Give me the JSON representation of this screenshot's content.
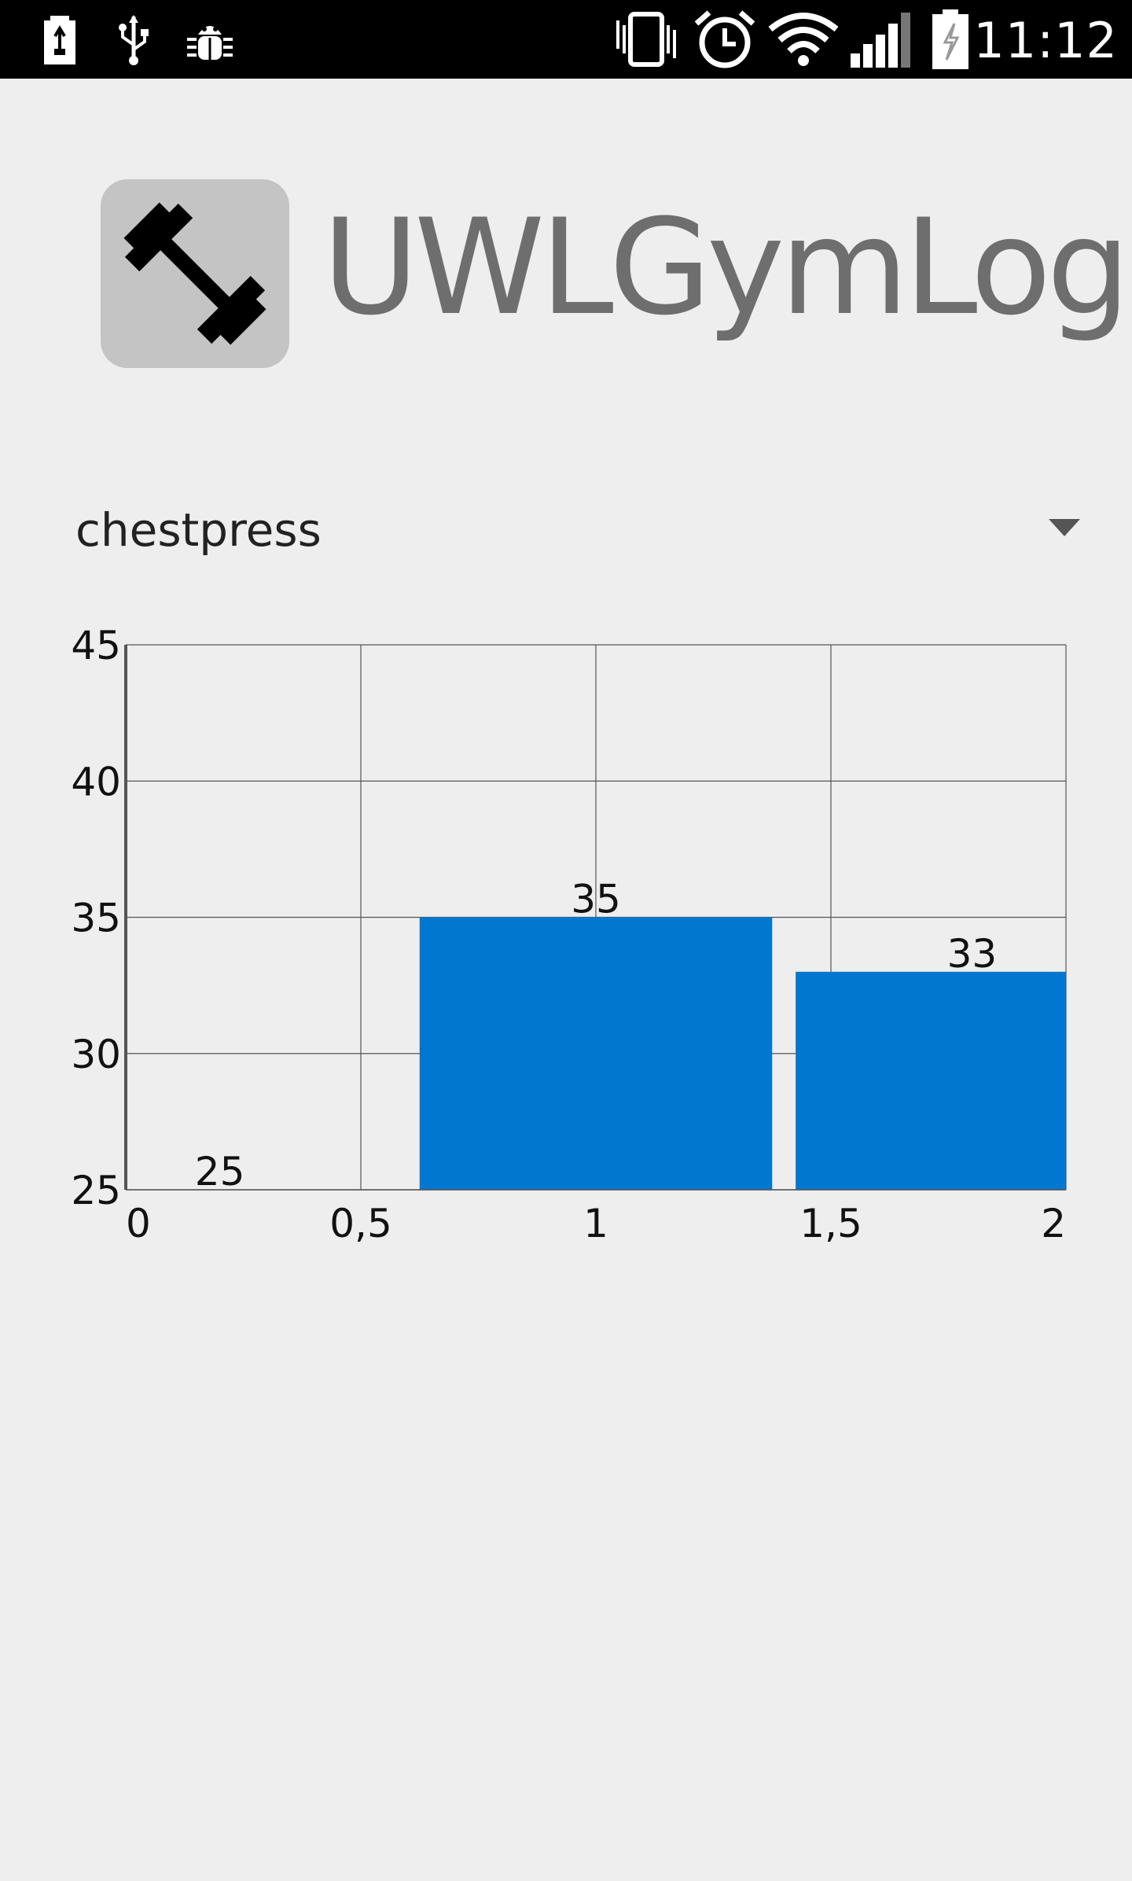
{
  "status_bar": {
    "time": "11:12",
    "icons": [
      "battery-saver-icon",
      "usb-icon",
      "debug-bug-icon",
      "vibrate-icon",
      "alarm-icon",
      "wifi-icon",
      "signal-icon",
      "battery-charging-icon"
    ]
  },
  "app": {
    "title": "UWLGymLog",
    "logo_icon": "dumbbell-icon"
  },
  "exercise_selector": {
    "selected": "chestpress"
  },
  "colors": {
    "bar": "#0277cf",
    "background": "#eeeeee",
    "grid": "#555555"
  },
  "chart_data": {
    "type": "bar",
    "x": [
      0.2,
      1,
      1.8
    ],
    "values": [
      25,
      35,
      33
    ],
    "data_labels": [
      "25",
      "35",
      "33"
    ],
    "xlim": [
      0,
      2
    ],
    "ylim": [
      25,
      45
    ],
    "x_ticks": [
      "0",
      "0,5",
      "1",
      "1,5",
      "2"
    ],
    "y_ticks": [
      "25",
      "30",
      "35",
      "40",
      "45"
    ],
    "grid": true
  }
}
